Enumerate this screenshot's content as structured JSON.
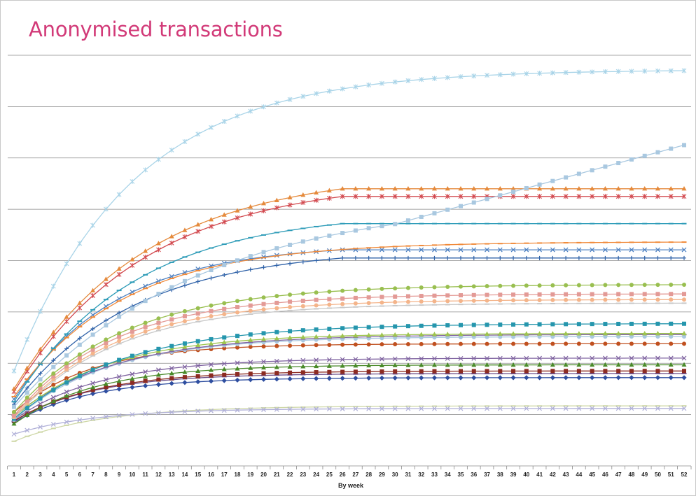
{
  "chart_data": {
    "type": "line",
    "title": "Anonymised transactions",
    "xlabel": "By week",
    "ylabel": "",
    "x": [
      1,
      2,
      3,
      4,
      5,
      6,
      7,
      8,
      9,
      10,
      11,
      12,
      13,
      14,
      15,
      16,
      17,
      18,
      19,
      20,
      21,
      22,
      23,
      24,
      25,
      26,
      27,
      28,
      29,
      30,
      31,
      32,
      33,
      34,
      35,
      36,
      37,
      38,
      39,
      40,
      41,
      42,
      43,
      44,
      45,
      46,
      47,
      48,
      49,
      50,
      51,
      52
    ],
    "ylim": [
      0,
      8
    ],
    "y_tick_labels_shown": false,
    "grid": "horizontal",
    "legend": "none",
    "series": [
      {
        "color": "#a9d4e8",
        "marker": "star",
        "start": 1.85,
        "end": 7.7,
        "k": 0.11
      },
      {
        "color": "#a9c8e0",
        "marker": "square",
        "start": 1.15,
        "end": 6.25,
        "k": 0.07,
        "linear_tail": true
      },
      {
        "color": "#e58a3c",
        "marker": "triangle",
        "start": 1.5,
        "end": 5.4,
        "k": 0.1,
        "plateau_at": 26
      },
      {
        "color": "#d2494f",
        "marker": "star",
        "start": 1.45,
        "end": 5.25,
        "k": 0.1,
        "plateau_at": 26
      },
      {
        "color": "#2e9cb8",
        "marker": "dash",
        "start": 1.25,
        "end": 4.72,
        "k": 0.11,
        "plateau_at": 26
      },
      {
        "color": "#f08a3a",
        "marker": "dash",
        "start": 1.35,
        "end": 4.36,
        "k": 0.12
      },
      {
        "color": "#4f82c2",
        "marker": "x",
        "start": 1.3,
        "end": 4.21,
        "k": 0.13,
        "plateau_at": 26
      },
      {
        "color": "#2f62a8",
        "marker": "plus",
        "start": 1.2,
        "end": 4.05,
        "k": 0.11,
        "plateau_at": 26
      },
      {
        "color": "#99bf50",
        "marker": "circle",
        "start": 1.05,
        "end": 3.53,
        "k": 0.12
      },
      {
        "color": "#e39a96",
        "marker": "square",
        "start": 0.98,
        "end": 3.35,
        "k": 0.13
      },
      {
        "color": "#f4b48a",
        "marker": "circle",
        "start": 0.95,
        "end": 3.24,
        "k": 0.13
      },
      {
        "color": "#c8c8c8",
        "marker": "dash",
        "start": 0.93,
        "end": 3.17,
        "k": 0.13
      },
      {
        "color": "#2596ad",
        "marker": "square",
        "start": 0.92,
        "end": 2.77,
        "k": 0.12
      },
      {
        "color": "#9ec44e",
        "marker": "triangle",
        "start": 0.95,
        "end": 2.58,
        "k": 0.14
      },
      {
        "color": "#8064a2",
        "marker": "dash",
        "start": 0.98,
        "end": 2.56,
        "k": 0.13
      },
      {
        "color": "#a9c8e0",
        "marker": "circle",
        "start": 0.9,
        "end": 2.52,
        "k": 0.14
      },
      {
        "color": "#c0501f",
        "marker": "circle",
        "start": 1.05,
        "end": 2.38,
        "k": 0.17
      },
      {
        "color": "#7f63a0",
        "marker": "x",
        "start": 0.9,
        "end": 2.1,
        "k": 0.15
      },
      {
        "color": "#4a8a2a",
        "marker": "triangle",
        "start": 0.82,
        "end": 1.97,
        "k": 0.16
      },
      {
        "color": "#8c2b22",
        "marker": "square",
        "start": 0.88,
        "end": 1.85,
        "k": 0.16
      },
      {
        "color": "#6e4f8a",
        "marker": "dash",
        "start": 0.87,
        "end": 1.8,
        "k": 0.17
      },
      {
        "color": "#2e4ea0",
        "marker": "diamond",
        "start": 0.85,
        "end": 1.72,
        "k": 0.17
      },
      {
        "color": "#b0b0d8",
        "marker": "x",
        "start": 0.62,
        "end": 1.12,
        "k": 0.16
      },
      {
        "color": "#cfd8a8",
        "marker": "dash",
        "start": 0.48,
        "end": 1.17,
        "k": 0.15
      }
    ]
  }
}
